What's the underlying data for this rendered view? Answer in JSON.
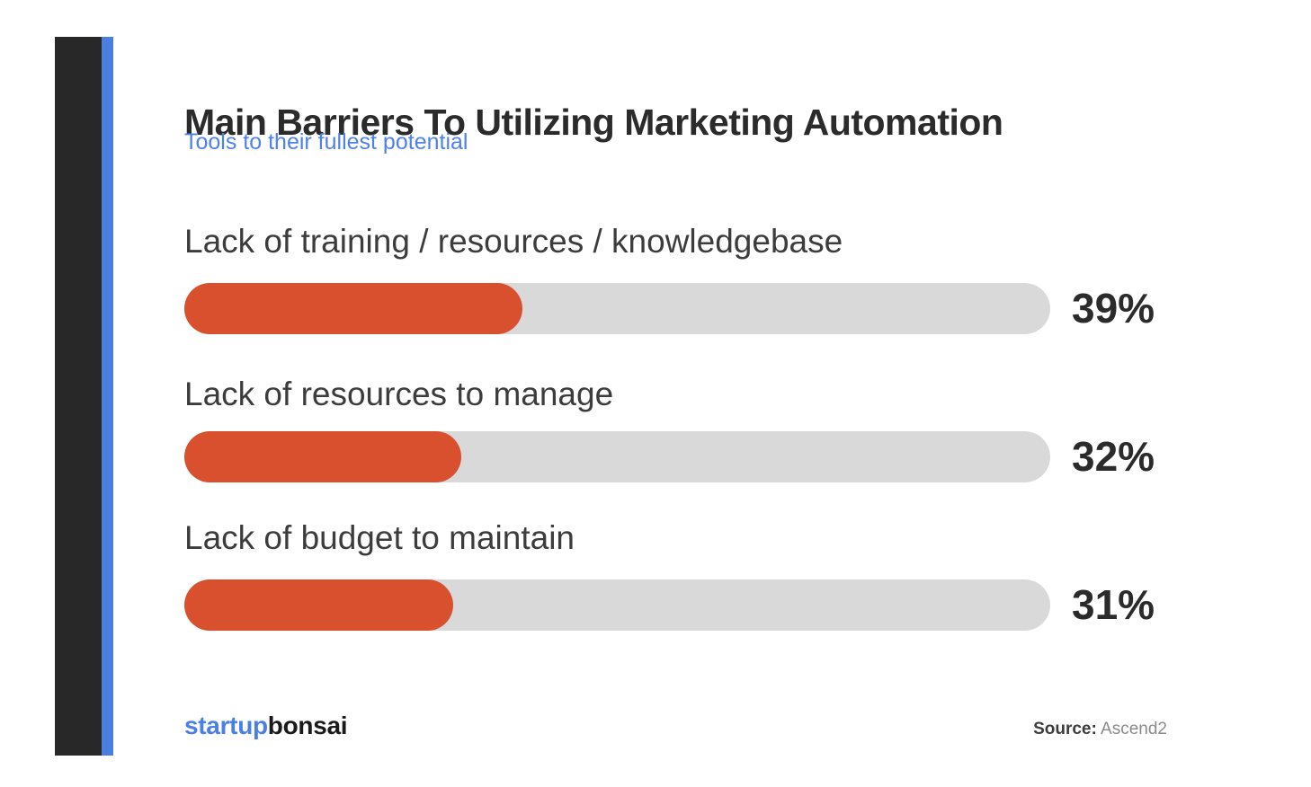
{
  "page": {
    "title": "Main Barriers To Utilizing Marketing Automation",
    "subtitle": "Tools to their fullest potential"
  },
  "chart_data": {
    "type": "bar",
    "orientation": "horizontal",
    "title": "Main Barriers To Utilizing Marketing Automation",
    "subtitle": "Tools to their fullest potential",
    "categories": [
      "Lack of training / resources / knowledgebase",
      "Lack of resources to manage",
      "Lack of budget to maintain"
    ],
    "values": [
      39,
      32,
      31
    ],
    "value_labels": [
      "39%",
      "32%",
      "31%"
    ],
    "xlim": [
      0,
      100
    ],
    "grid": false,
    "legend": false,
    "bar_color": "#D8502E",
    "track_color": "#D9D9D9"
  },
  "footer": {
    "logo_part1": "startup",
    "logo_part2": "bonsai",
    "source_label": "Source:",
    "source_value": "Ascend2"
  },
  "colors": {
    "sidebar_dark": "#282828",
    "stripe_blue": "#4A7FE0",
    "subtitle_blue": "#4E82EA",
    "title_dark": "#2B2B2B",
    "label_dark": "#3C3C3C",
    "logo_blue": "#4A7FE8",
    "source_gray": "#8A8A8A"
  }
}
